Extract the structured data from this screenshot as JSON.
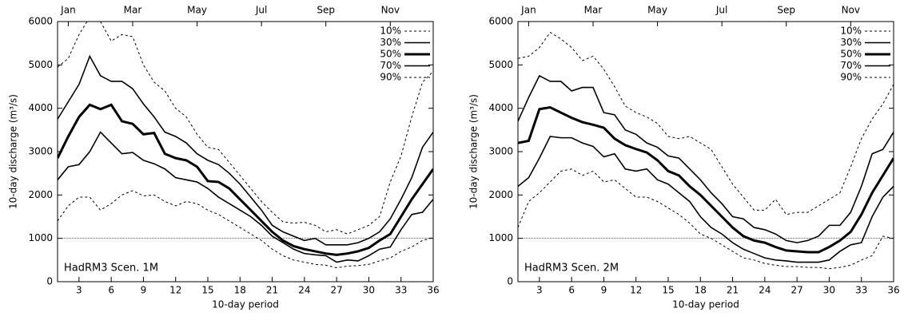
{
  "chart_data": [
    {
      "type": "line",
      "annotation": "HadRM3 Scen. 1M",
      "x_label": "10-day period",
      "y_label": "10-day discharge (m³/s)",
      "x": [
        1,
        2,
        3,
        4,
        5,
        6,
        7,
        8,
        9,
        10,
        11,
        12,
        13,
        14,
        15,
        16,
        17,
        18,
        19,
        20,
        21,
        22,
        23,
        24,
        25,
        26,
        27,
        28,
        29,
        30,
        31,
        32,
        33,
        34,
        35,
        36
      ],
      "xlim": [
        1,
        36
      ],
      "xticks": [
        3,
        6,
        9,
        12,
        15,
        18,
        21,
        24,
        27,
        30,
        33,
        36
      ],
      "top_ticks": [
        {
          "value": 2,
          "label": "Jan"
        },
        {
          "value": 8,
          "label": "Mar"
        },
        {
          "value": 14,
          "label": "May"
        },
        {
          "value": 20,
          "label": "Jul"
        },
        {
          "value": 26,
          "label": "Sep"
        },
        {
          "value": 32,
          "label": "Nov"
        }
      ],
      "ylim": [
        0,
        6000
      ],
      "yticks": [
        0,
        1000,
        2000,
        3000,
        4000,
        5000,
        6000
      ],
      "hline": 1000,
      "legend": "upper right",
      "series": [
        {
          "name": "10%",
          "color": "#000000",
          "width": 1,
          "dash": true,
          "values": [
            1400,
            1750,
            1950,
            1950,
            1650,
            1800,
            2000,
            2100,
            1980,
            2000,
            1850,
            1750,
            1850,
            1800,
            1650,
            1550,
            1400,
            1250,
            1100,
            950,
            750,
            600,
            500,
            450,
            400,
            380,
            320,
            360,
            370,
            400,
            480,
            550,
            700,
            800,
            950,
            1020
          ]
        },
        {
          "name": "30%",
          "color": "#000000",
          "width": 1.6,
          "dash": false,
          "values": [
            3750,
            4150,
            4550,
            5200,
            4750,
            4620,
            4620,
            4450,
            4100,
            3800,
            3450,
            3350,
            3200,
            2950,
            2800,
            2700,
            2500,
            2250,
            1950,
            1650,
            1300,
            1150,
            1050,
            950,
            1000,
            850,
            850,
            850,
            900,
            1000,
            1150,
            1450,
            1900,
            2400,
            3100,
            3450
          ]
        },
        {
          "name": "50%",
          "color": "#000000",
          "width": 3,
          "dash": false,
          "values": [
            2850,
            3350,
            3800,
            4080,
            3980,
            4080,
            3700,
            3640,
            3400,
            3430,
            2950,
            2850,
            2800,
            2650,
            2320,
            2300,
            2150,
            1900,
            1650,
            1400,
            1150,
            950,
            820,
            750,
            700,
            650,
            620,
            650,
            700,
            780,
            950,
            1100,
            1500,
            1900,
            2250,
            2600
          ]
        },
        {
          "name": "70%",
          "color": "#000000",
          "width": 1.6,
          "dash": false,
          "values": [
            2350,
            2650,
            2700,
            3000,
            3450,
            3200,
            2950,
            2980,
            2800,
            2720,
            2600,
            2400,
            2350,
            2300,
            2150,
            1950,
            1800,
            1650,
            1500,
            1300,
            1050,
            900,
            750,
            650,
            620,
            600,
            450,
            500,
            480,
            600,
            750,
            800,
            1200,
            1550,
            1600,
            1900
          ]
        },
        {
          "name": "90%",
          "color": "#000000",
          "width": 1,
          "dash": true,
          "values": [
            4950,
            5150,
            5700,
            6100,
            6000,
            5550,
            5700,
            5650,
            5000,
            4600,
            4400,
            4000,
            3800,
            3400,
            3100,
            3050,
            2750,
            2450,
            2150,
            1850,
            1600,
            1380,
            1350,
            1370,
            1300,
            1150,
            1200,
            1100,
            1200,
            1300,
            1500,
            2300,
            2900,
            3800,
            4600,
            4850
          ]
        }
      ]
    },
    {
      "type": "line",
      "annotation": "HadRM3 Scen. 2M",
      "x_label": "10-day period",
      "y_label": "10-day discharge (m³/s)",
      "x": [
        1,
        2,
        3,
        4,
        5,
        6,
        7,
        8,
        9,
        10,
        11,
        12,
        13,
        14,
        15,
        16,
        17,
        18,
        19,
        20,
        21,
        22,
        23,
        24,
        25,
        26,
        27,
        28,
        29,
        30,
        31,
        32,
        33,
        34,
        35,
        36
      ],
      "xlim": [
        1,
        36
      ],
      "xticks": [
        3,
        6,
        9,
        12,
        15,
        18,
        21,
        24,
        27,
        30,
        33,
        36
      ],
      "top_ticks": [
        {
          "value": 2,
          "label": "Jan"
        },
        {
          "value": 8,
          "label": "Mar"
        },
        {
          "value": 14,
          "label": "May"
        },
        {
          "value": 20,
          "label": "Jul"
        },
        {
          "value": 26,
          "label": "Sep"
        },
        {
          "value": 32,
          "label": "Nov"
        }
      ],
      "ylim": [
        0,
        6000
      ],
      "yticks": [
        0,
        1000,
        2000,
        3000,
        4000,
        5000,
        6000
      ],
      "hline": 1000,
      "legend": "upper right",
      "series": [
        {
          "name": "10%",
          "color": "#000000",
          "width": 1,
          "dash": true,
          "values": [
            1250,
            1850,
            2050,
            2300,
            2550,
            2600,
            2450,
            2550,
            2300,
            2350,
            2150,
            1950,
            1950,
            1850,
            1700,
            1550,
            1350,
            1100,
            1000,
            850,
            700,
            550,
            500,
            420,
            380,
            350,
            350,
            330,
            330,
            300,
            330,
            380,
            500,
            600,
            1050,
            1000
          ]
        },
        {
          "name": "30%",
          "color": "#000000",
          "width": 1.6,
          "dash": false,
          "values": [
            3700,
            4250,
            4750,
            4620,
            4620,
            4400,
            4480,
            4480,
            3900,
            3850,
            3500,
            3400,
            3200,
            3100,
            2900,
            2850,
            2600,
            2350,
            2050,
            1800,
            1500,
            1450,
            1250,
            1200,
            1100,
            950,
            900,
            950,
            1050,
            1300,
            1300,
            1600,
            2200,
            2950,
            3050,
            3450
          ]
        },
        {
          "name": "50%",
          "color": "#000000",
          "width": 3,
          "dash": false,
          "values": [
            3200,
            3250,
            3980,
            4020,
            3900,
            3780,
            3680,
            3620,
            3550,
            3300,
            3150,
            3060,
            2980,
            2800,
            2550,
            2450,
            2200,
            2000,
            1750,
            1500,
            1250,
            1050,
            950,
            900,
            800,
            720,
            700,
            680,
            680,
            800,
            950,
            1150,
            1550,
            2050,
            2450,
            2850
          ]
        },
        {
          "name": "70%",
          "color": "#000000",
          "width": 1.6,
          "dash": false,
          "values": [
            2200,
            2400,
            2850,
            3350,
            3320,
            3320,
            3200,
            3120,
            2880,
            2950,
            2600,
            2550,
            2600,
            2350,
            2250,
            2050,
            1850,
            1500,
            1250,
            1100,
            900,
            750,
            650,
            550,
            500,
            480,
            450,
            450,
            450,
            500,
            700,
            850,
            900,
            1500,
            1950,
            2200
          ]
        },
        {
          "name": "90%",
          "color": "#000000",
          "width": 1,
          "dash": true,
          "values": [
            5150,
            5200,
            5400,
            5750,
            5600,
            5400,
            5100,
            5200,
            4900,
            4500,
            4050,
            3900,
            3800,
            3650,
            3350,
            3300,
            3350,
            3200,
            3050,
            2650,
            2250,
            1950,
            1650,
            1650,
            1900,
            1550,
            1600,
            1600,
            1750,
            1900,
            2050,
            2650,
            3300,
            3750,
            4100,
            4550
          ]
        }
      ]
    }
  ]
}
